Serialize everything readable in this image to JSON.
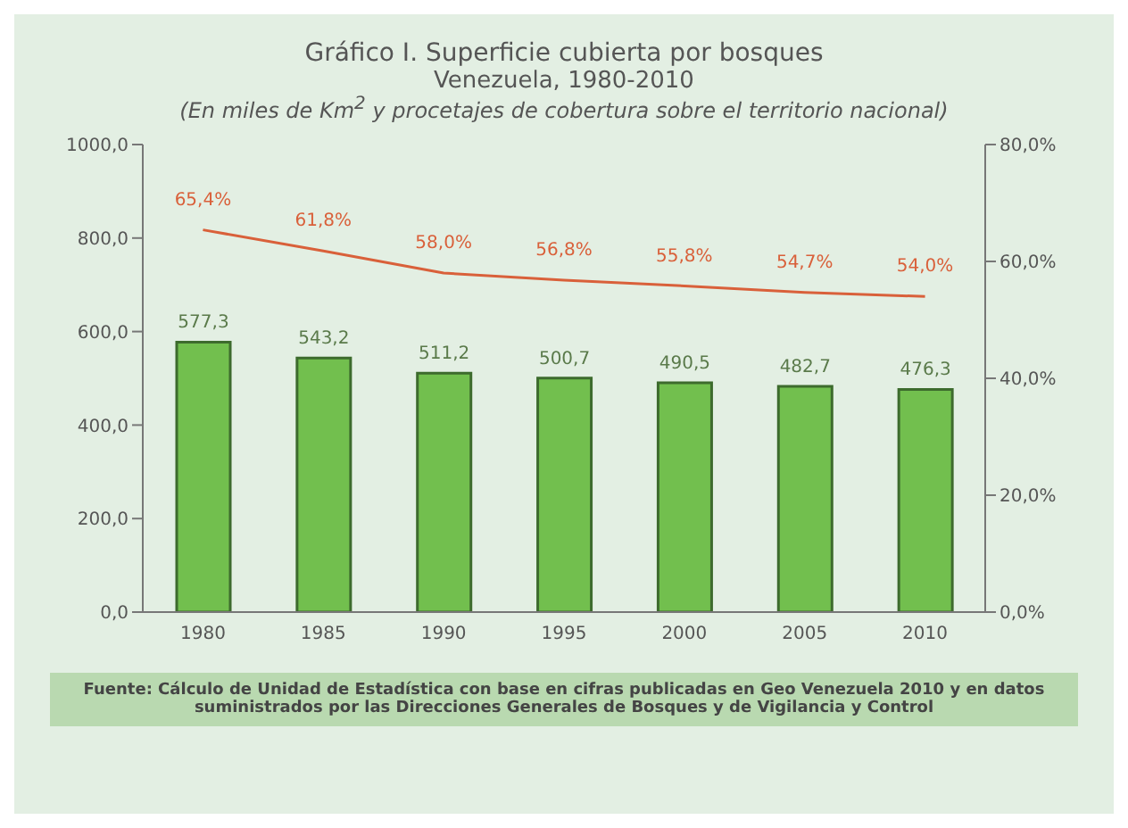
{
  "chart_data": {
    "type": "bar",
    "title": "Gráfico I. Superficie cubierta por bosques",
    "subtitle": "Venezuela, 1980-2010",
    "annotations": [
      "(En miles de Km$^{2}$ y procetajes de cobertura sobre el territorio nacional)",
      "Fuente: Cálculo de Unidad de Estadística con base en cifras publicadas en Geo Venezuela 2010 y en datos suministrados por las Direcciones Generales de Bosques y de Vigilancia y Control"
    ],
    "categories": [
      "1980",
      "1985",
      "1990",
      "1995",
      "2000",
      "2005",
      "2010"
    ],
    "series": [
      {
        "color": "#72bf4e",
        "values": [
          577.3,
          543.2,
          511.2,
          500.7,
          490.5,
          482.7,
          476.3
        ],
        "value_labels": [
          "577,3",
          "543,2",
          "511,2",
          "500,7",
          "490,5",
          "482,7",
          "476,3"
        ]
      },
      {
        "type": "line",
        "axis": "y2",
        "color": "#d9603a",
        "values": [
          65.4,
          61.8,
          58.0,
          56.8,
          55.8,
          54.7,
          54.0
        ],
        "value_labels": [
          "65,4%",
          "61,8%",
          "58,0%",
          "56,8%",
          "55,8%",
          "54,7%",
          "54,0%"
        ]
      }
    ],
    "ylim": [
      0,
      1000
    ],
    "yticks": [
      {
        "value": 0,
        "label": "0,0"
      },
      {
        "value": 200,
        "label": "200,0"
      },
      {
        "value": 400,
        "label": "400,0"
      },
      {
        "value": 600,
        "label": "600,0"
      },
      {
        "value": 800,
        "label": "800,0"
      },
      {
        "value": 1000,
        "label": "1000,0"
      }
    ],
    "y2lim": [
      0,
      80
    ],
    "y2ticks": [
      {
        "value": 0,
        "label": "0,0%"
      },
      {
        "value": 20,
        "label": "20,0%"
      },
      {
        "value": 40,
        "label": "40,0%"
      },
      {
        "value": 60,
        "label": "60,0%"
      },
      {
        "value": 80,
        "label": "80,0%"
      }
    ],
    "grid": false,
    "legend": false,
    "marker": "none",
    "line_style": "solid"
  }
}
